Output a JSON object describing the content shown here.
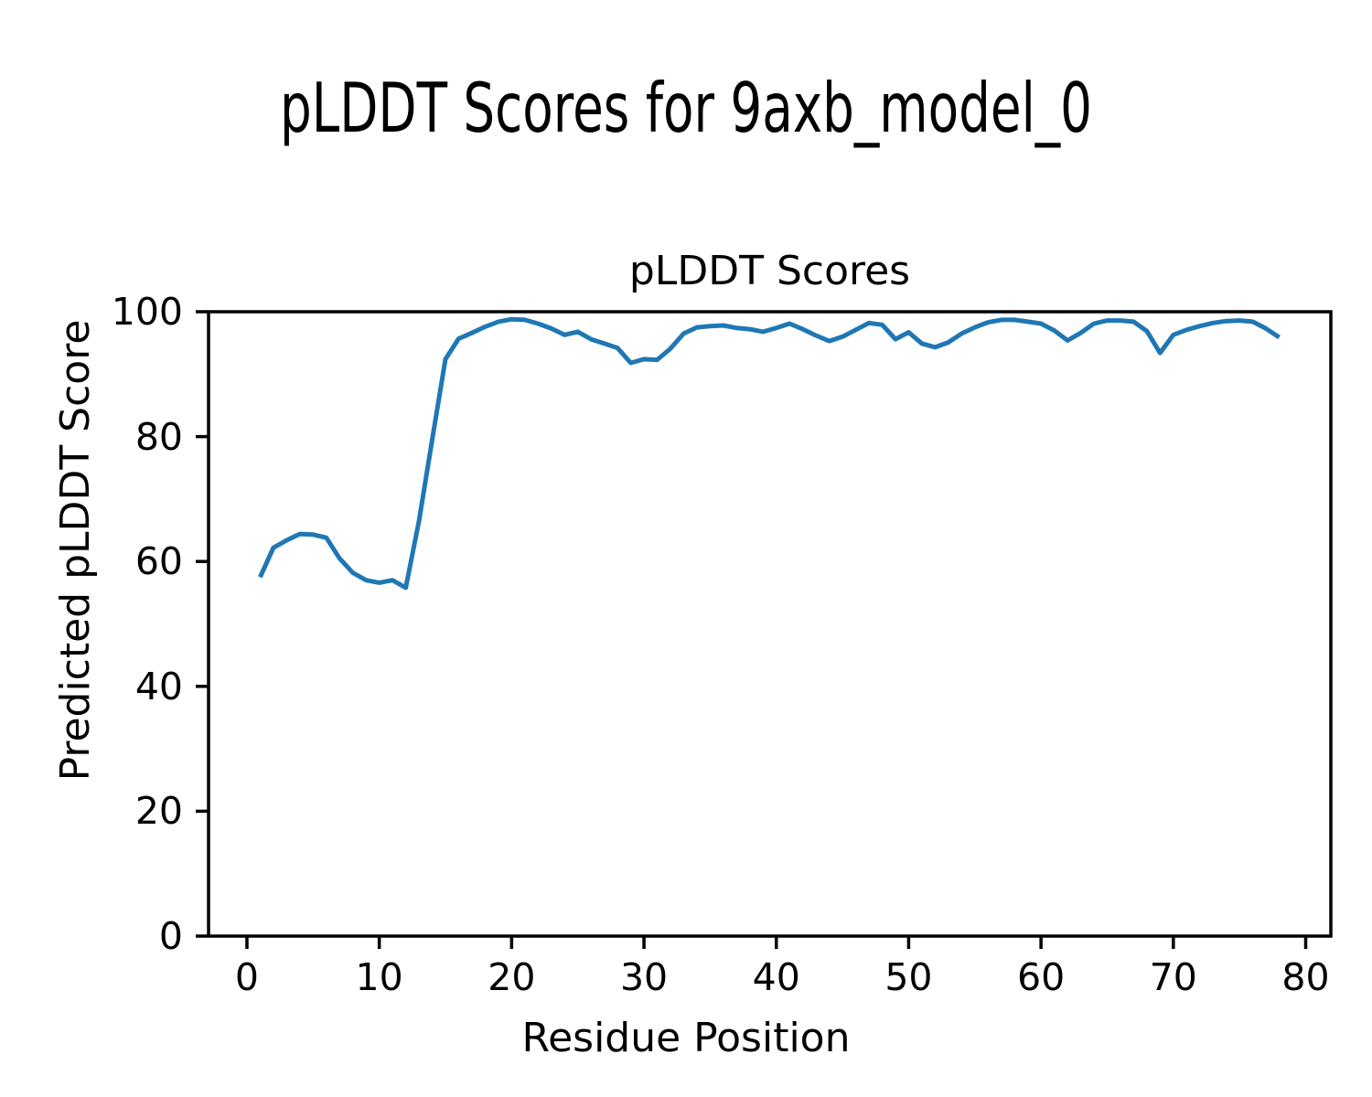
{
  "figure": {
    "title": "pLDDT Scores for 9axb_model_0"
  },
  "chart_data": {
    "type": "line",
    "title": "pLDDT Scores",
    "xlabel": "Residue Position",
    "ylabel": "Predicted pLDDT Score",
    "line_color": "#1f77b4",
    "axis_color": "#000000",
    "background_color": "#ffffff",
    "line_width": 5,
    "grid": false,
    "legend": null,
    "xlim": [
      -2.9,
      81.9
    ],
    "ylim": [
      0,
      100
    ],
    "x_ticks": [
      0,
      10,
      20,
      30,
      40,
      50,
      60,
      70,
      80
    ],
    "y_ticks": [
      0,
      20,
      40,
      60,
      80,
      100
    ],
    "x": [
      1,
      2,
      3,
      4,
      5,
      6,
      7,
      8,
      9,
      10,
      11,
      12,
      13,
      14,
      15,
      16,
      17,
      18,
      19,
      20,
      21,
      22,
      23,
      24,
      25,
      26,
      27,
      28,
      29,
      30,
      31,
      32,
      33,
      34,
      35,
      36,
      37,
      38,
      39,
      40,
      41,
      42,
      43,
      44,
      45,
      46,
      47,
      48,
      49,
      50,
      51,
      52,
      53,
      54,
      55,
      56,
      57,
      58,
      59,
      60,
      61,
      62,
      63,
      64,
      65,
      66,
      67,
      68,
      69,
      70,
      71,
      72,
      73,
      74,
      75,
      76,
      77,
      78
    ],
    "y": [
      57.5,
      62.2,
      63.4,
      64.4,
      64.3,
      63.8,
      60.5,
      58.2,
      57.0,
      56.6,
      57.0,
      55.8,
      66.5,
      79.5,
      92.4,
      95.7,
      96.6,
      97.6,
      98.4,
      98.8,
      98.7,
      98.1,
      97.3,
      96.3,
      96.8,
      95.6,
      94.9,
      94.2,
      91.8,
      92.4,
      92.3,
      94.1,
      96.5,
      97.5,
      97.7,
      97.8,
      97.4,
      97.2,
      96.8,
      97.4,
      98.1,
      97.2,
      96.2,
      95.3,
      96.0,
      97.1,
      98.2,
      97.9,
      95.6,
      96.7,
      94.9,
      94.3,
      95.1,
      96.5,
      97.5,
      98.3,
      98.7,
      98.7,
      98.4,
      98.1,
      97.0,
      95.4,
      96.6,
      98.1,
      98.6,
      98.6,
      98.4,
      96.9,
      93.4,
      96.3,
      97.1,
      97.7,
      98.2,
      98.5,
      98.6,
      98.4,
      97.3,
      95.9
    ]
  }
}
